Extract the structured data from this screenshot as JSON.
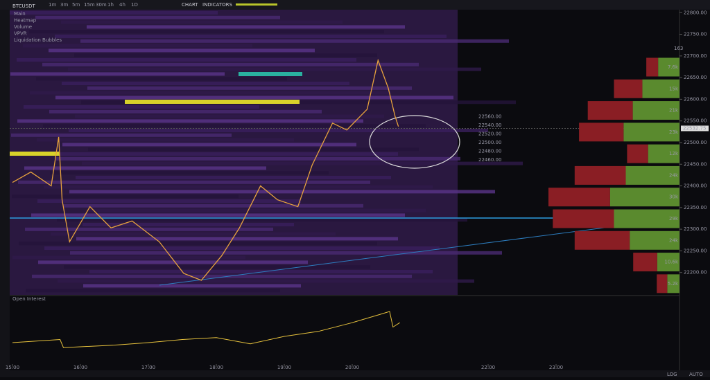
{
  "toolbar": {
    "symbol": "BTCUSDT",
    "timeframes": [
      "1m",
      "3m",
      "5m",
      "15m",
      "30m",
      "1h",
      "4h",
      "1D"
    ],
    "active": "1h",
    "chart": "CHART",
    "indicators": "INDICATORS"
  },
  "legend": [
    "Main",
    "Heatmap",
    "Volume",
    "VPVR",
    "Liquidation Bubbles"
  ],
  "price_axis": {
    "ylim": [
      22150,
      22810
    ],
    "ticks": [
      {
        "value": 22800,
        "label": "22800.00"
      },
      {
        "value": 22750,
        "label": "22750.00"
      },
      {
        "value": 22700,
        "label": "22700.00"
      },
      {
        "value": 22650,
        "label": "22650.00"
      },
      {
        "value": 22600,
        "label": "22600.00"
      },
      {
        "value": 22550,
        "label": "22550.00"
      },
      {
        "value": 22500,
        "label": "22500.00"
      },
      {
        "value": 22450,
        "label": "22450.00"
      },
      {
        "value": 22400,
        "label": "22400.00"
      },
      {
        "value": 22350,
        "label": "22350.00"
      },
      {
        "value": 22300,
        "label": "22300.00"
      },
      {
        "value": 22250,
        "label": "22250.00"
      },
      {
        "value": 22200,
        "label": "22200.00"
      }
    ],
    "current": {
      "value": 22532.75,
      "label": "22532.75"
    }
  },
  "time_axis": {
    "ticks": [
      {
        "value": 0,
        "label": "15:00"
      },
      {
        "value": 1,
        "label": "16:00"
      },
      {
        "value": 2,
        "label": "17:00"
      },
      {
        "value": 3,
        "label": "18:00"
      },
      {
        "value": 4,
        "label": "19:00"
      },
      {
        "value": 5,
        "label": "20:00"
      },
      {
        "value": 7,
        "label": "22:00"
      },
      {
        "value": 8,
        "label": "23:00"
      }
    ]
  },
  "price": {
    "t": [
      0,
      0.27,
      0.57,
      0.68,
      0.73,
      0.84,
      1.14,
      1.45,
      1.76,
      2.16,
      2.52,
      2.78,
      3.08,
      3.34,
      3.65,
      3.9,
      4.2,
      4.41,
      4.71,
      4.92,
      5.22,
      5.38,
      5.53,
      5.63,
      5.68
    ],
    "values": [
      22408,
      22432,
      22400,
      22513,
      22368,
      22271,
      22352,
      22303,
      22319,
      22271,
      22198,
      22182,
      22239,
      22303,
      22400,
      22368,
      22352,
      22448,
      22545,
      22529,
      22577,
      22690,
      22626,
      22561,
      22537
    ],
    "color": "#e8a33d"
  },
  "order_book": [
    {
      "value": 22560,
      "label": "22560.00"
    },
    {
      "value": 22540,
      "label": "22540.00"
    },
    {
      "value": 22520,
      "label": "22520.00"
    },
    {
      "value": 22500,
      "label": "22500.00"
    },
    {
      "value": 22480,
      "label": "22480.00"
    },
    {
      "value": 22460,
      "label": "22460.00"
    }
  ],
  "profile": {
    "top_label": "163",
    "rows": [
      {
        "price": 22675,
        "sell": 2.7,
        "buy": 4.9,
        "label": "7.6k"
      },
      {
        "price": 22625,
        "sell": 6.5,
        "buy": 8.5,
        "label": "15k"
      },
      {
        "price": 22575,
        "sell": 10.3,
        "buy": 10.7,
        "label": "21k"
      },
      {
        "price": 22525,
        "sell": 10.2,
        "buy": 12.8,
        "label": "23k"
      },
      {
        "price": 22475,
        "sell": 4.8,
        "buy": 7.2,
        "label": "12k"
      },
      {
        "price": 22425,
        "sell": 11.7,
        "buy": 12.3,
        "label": "24k"
      },
      {
        "price": 22375,
        "sell": 14.1,
        "buy": 15.9,
        "label": "30k"
      },
      {
        "price": 22325,
        "sell": 14,
        "buy": 15,
        "label": "29k"
      },
      {
        "price": 22275,
        "sell": 12.6,
        "buy": 11.4,
        "label": "24k"
      },
      {
        "price": 22225,
        "sell": 5.5,
        "buy": 5.1,
        "label": "10.6k"
      },
      {
        "price": 22175,
        "sell": 2.4,
        "buy": 2.8,
        "label": "5.2k"
      }
    ]
  },
  "open_interest": {
    "label": "Open Interest",
    "ylim": [
      0,
      100
    ],
    "t": [
      0,
      0.7,
      0.75,
      1.5,
      2,
      2.5,
      3,
      3.5,
      4,
      4.5,
      5,
      5.4,
      5.55,
      5.6,
      5.7
    ],
    "values": [
      30,
      35,
      22,
      26,
      30,
      35,
      38,
      28,
      40,
      48,
      62,
      75,
      80,
      55,
      62
    ]
  },
  "footer": {
    "log": "LOG",
    "auto": "AUTO"
  }
}
